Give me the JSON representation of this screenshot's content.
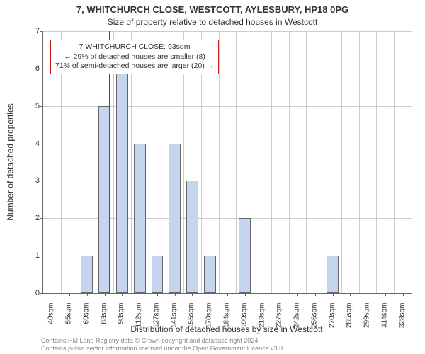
{
  "title_main": "7, WHITCHURCH CLOSE, WESTCOTT, AYLESBURY, HP18 0PG",
  "title_sub": "Size of property relative to detached houses in Westcott",
  "y_label": "Number of detached properties",
  "x_label": "Distribution of detached houses by size in Westcott",
  "footer_line1": "Contains HM Land Registry data © Crown copyright and database right 2024.",
  "footer_line2": "Contains public sector information licensed under the Open Government Licence v3.0.",
  "chart": {
    "type": "bar",
    "background_color": "#ffffff",
    "grid_color": "#cccccc",
    "axis_color": "#666666",
    "bar_fill": "#c5d5ee",
    "bar_border": "#666666",
    "marker_color": "#d11919",
    "ylim": [
      0,
      7
    ],
    "ytick_step": 1,
    "x_categories": [
      "40sqm",
      "55sqm",
      "69sqm",
      "83sqm",
      "98sqm",
      "112sqm",
      "127sqm",
      "141sqm",
      "155sqm",
      "170sqm",
      "184sqm",
      "199sqm",
      "213sqm",
      "227sqm",
      "242sqm",
      "256sqm",
      "270sqm",
      "285sqm",
      "299sqm",
      "314sqm",
      "328sqm"
    ],
    "values": [
      0,
      0,
      1,
      5,
      6,
      4,
      1,
      4,
      3,
      1,
      0,
      2,
      0,
      0,
      0,
      0,
      1,
      0,
      0,
      0,
      0
    ],
    "marker_x_index_after": 3,
    "label_fontsize": 12,
    "tick_fontsize": 10
  },
  "info_box": {
    "line1": "7 WHITCHURCH CLOSE: 93sqm",
    "line2": "← 29% of detached houses are smaller (8)",
    "line3": "71% of semi-detached houses are larger (20) →"
  }
}
